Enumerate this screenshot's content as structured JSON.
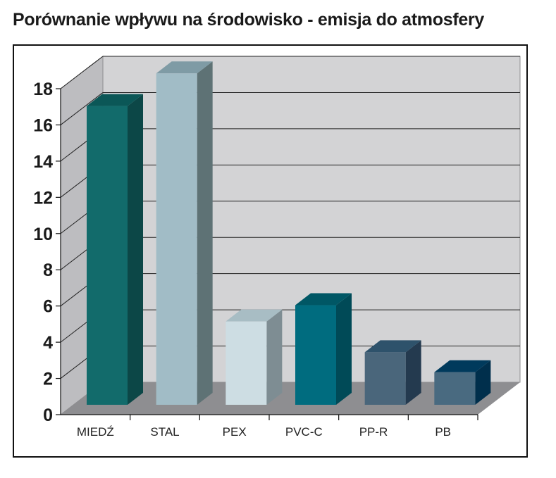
{
  "chart_data": {
    "type": "bar",
    "title": "Porównanie wpływu na środowisko - emisja do atmosfery",
    "xlabel": "",
    "ylabel": "",
    "ylim": [
      0,
      18
    ],
    "yticks": [
      0,
      2,
      4,
      6,
      8,
      10,
      12,
      14,
      16,
      18
    ],
    "categories": [
      "MIEDŹ",
      "STAL",
      "PEX",
      "PVC-C",
      "PP-R",
      "PB"
    ],
    "values": [
      16.5,
      18.3,
      4.6,
      5.5,
      2.9,
      1.8
    ],
    "colors": [
      {
        "front": "#126b6b",
        "side": "#0c4747",
        "top": "#0b5757"
      },
      {
        "front": "#a1bcc6",
        "side": "#5e7275",
        "top": "#7f9ba5"
      },
      {
        "front": "#cddde3",
        "side": "#7e8d93",
        "top": "#a8bdc4"
      },
      {
        "front": "#006c7f",
        "side": "#004a57",
        "top": "#005765"
      },
      {
        "front": "#4a667b",
        "side": "#243a4f",
        "top": "#2e526b"
      },
      {
        "front": "#496a80",
        "side": "#002f4c",
        "top": "#003a5c"
      }
    ],
    "grid": true
  }
}
